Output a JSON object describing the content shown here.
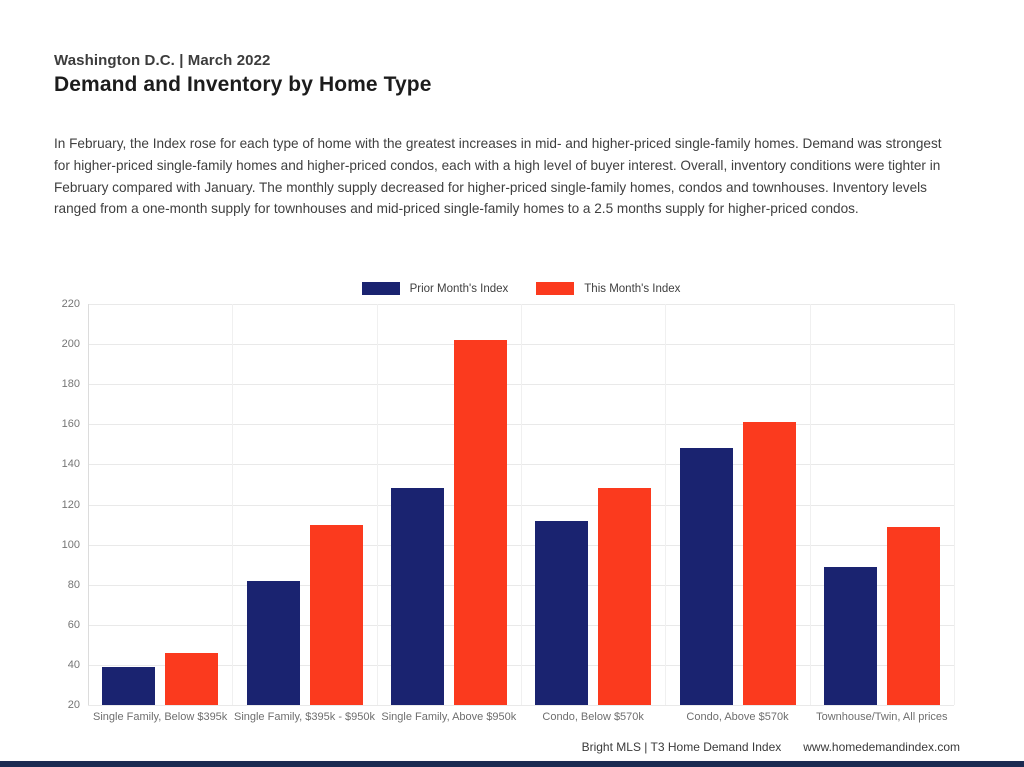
{
  "header": {
    "location_line": "Washington D.C. | March 2022",
    "title": "Demand and Inventory by Home Type",
    "summary": "In February, the Index rose for each type of home with the greatest increases in mid- and higher-priced single-family homes. Demand was strongest for higher-priced single-family homes and higher-priced condos, each with a high level of buyer interest. Overall, inventory conditions were tighter in February compared with January. The monthly supply decreased for higher-priced single-family homes, condos and townhouses. Inventory levels ranged from a one-month supply for townhouses and mid-priced single-family homes to a 2.5 months supply for higher-priced condos.",
    "text_color": "#1c1c1c"
  },
  "chart_data": {
    "type": "bar",
    "categories": [
      "Single Family, Below $395k",
      "Single Family, $395k - $950k",
      "Single Family, Above $950k",
      "Condo, Below $570k",
      "Condo, Above $570k",
      "Townhouse/Twin, All prices"
    ],
    "series": [
      {
        "name": "Prior Month's Index",
        "color": "#1A2370",
        "values": [
          39,
          82,
          128,
          112,
          148,
          89
        ]
      },
      {
        "name": "This Month's Index",
        "color": "#FB3A1E",
        "values": [
          46,
          110,
          202,
          128,
          161,
          109
        ]
      }
    ],
    "ylim": [
      20,
      220
    ],
    "yticks": [
      20,
      40,
      60,
      80,
      100,
      120,
      140,
      160,
      180,
      200,
      220
    ],
    "grid": true,
    "legend_position": "top-center",
    "xlabel": "",
    "ylabel": ""
  },
  "footer": {
    "source": "Bright MLS | T3 Home Demand Index",
    "website": "www.homedemandindex.com",
    "accent_bar_color": "#1B2B52"
  }
}
